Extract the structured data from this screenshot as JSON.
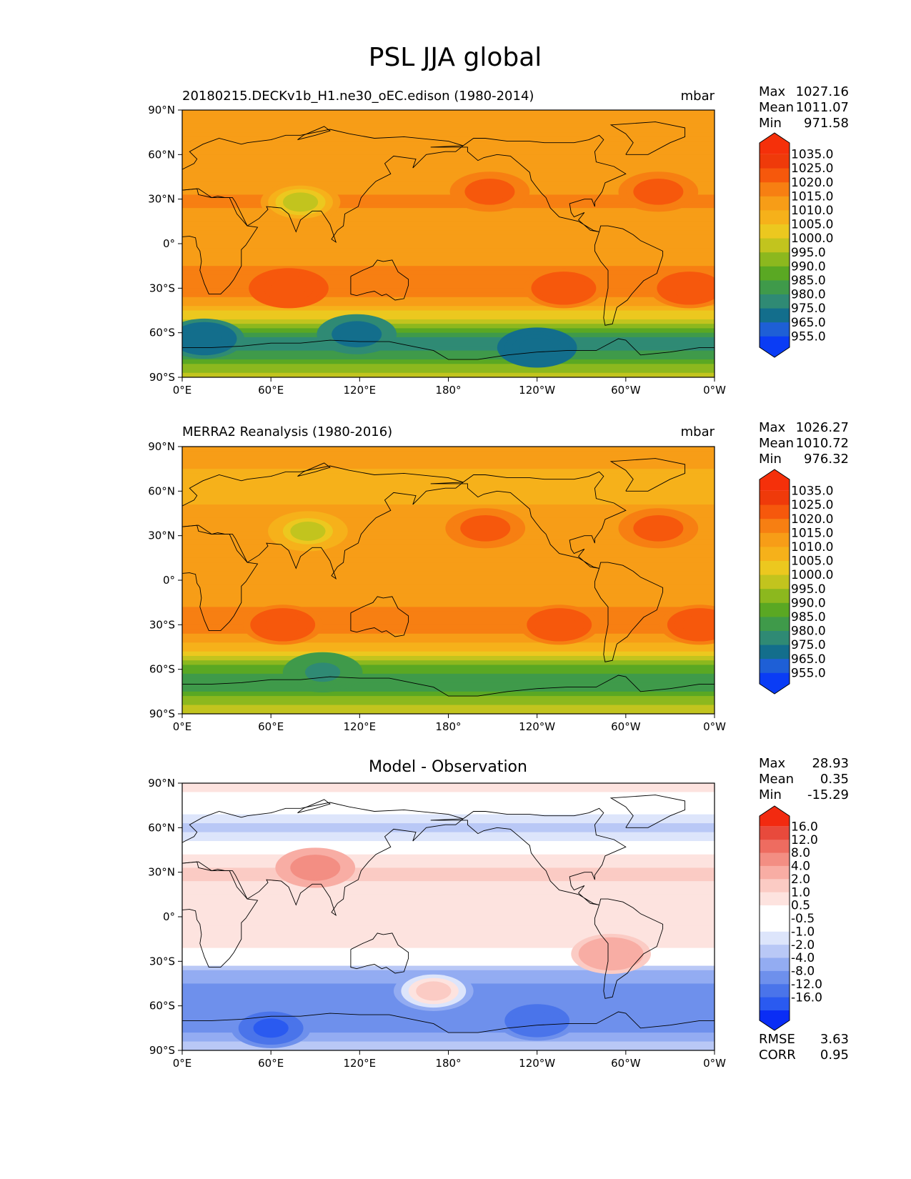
{
  "figure": {
    "title": "PSL JJA global"
  },
  "colors": {
    "absolute_levels": [
      "#0a3cf5",
      "#1e5fd6",
      "#136e8c",
      "#2f8a74",
      "#3f9a4a",
      "#5aa823",
      "#8cb81e",
      "#c2c41e",
      "#ecc81f",
      "#f6b11a",
      "#f79d17",
      "#f77f12",
      "#f6580c",
      "#ef3a0a",
      "#f5300a"
    ],
    "difference_levels": [
      "#0a2df5",
      "#2a5af0",
      "#4a74ea",
      "#6e90ec",
      "#93acf2",
      "#b9c8f6",
      "#dde5fb",
      "#ffffff",
      "#ffffff",
      "#fde3df",
      "#fbcbc4",
      "#f8ada4",
      "#f38e83",
      "#ee6c60",
      "#e84a3c",
      "#f22a10"
    ],
    "coastline": "#000000"
  },
  "panels": [
    {
      "id": "test",
      "left_title": "20180215.DECKv1b_H1.ne30_oEC.edison (1980-2014)",
      "center_title": "",
      "units": "mbar",
      "stats": [
        {
          "label": "Max",
          "value": "1027.16"
        },
        {
          "label": "Mean",
          "value": "1011.07"
        },
        {
          "label": "Min",
          "value": "971.58"
        }
      ],
      "colorbar_ticks": [
        "1035.0",
        "1025.0",
        "1020.0",
        "1015.0",
        "1010.0",
        "1005.0",
        "1000.0",
        "995.0",
        "990.0",
        "985.0",
        "980.0",
        "975.0",
        "965.0",
        "955.0"
      ],
      "extra_stats": []
    },
    {
      "id": "reference",
      "left_title": "MERRA2 Reanalysis (1980-2016)",
      "center_title": "",
      "units": "mbar",
      "stats": [
        {
          "label": "Max",
          "value": "1026.27"
        },
        {
          "label": "Mean",
          "value": "1010.72"
        },
        {
          "label": "Min",
          "value": "976.32"
        }
      ],
      "colorbar_ticks": [
        "1035.0",
        "1025.0",
        "1020.0",
        "1015.0",
        "1010.0",
        "1005.0",
        "1000.0",
        "995.0",
        "990.0",
        "985.0",
        "980.0",
        "975.0",
        "965.0",
        "955.0"
      ],
      "extra_stats": []
    },
    {
      "id": "difference",
      "left_title": "",
      "center_title": "Model - Observation",
      "units": "",
      "stats": [
        {
          "label": "Max",
          "value": "28.93"
        },
        {
          "label": "Mean",
          "value": "0.35"
        },
        {
          "label": "Min",
          "value": "-15.29"
        }
      ],
      "colorbar_ticks": [
        "16.0",
        "12.0",
        "8.0",
        "4.0",
        "2.0",
        "1.0",
        "0.5",
        "-0.5",
        "-1.0",
        "-2.0",
        "-4.0",
        "-8.0",
        "-12.0",
        "-16.0"
      ],
      "extra_stats": [
        {
          "label": "RMSE",
          "value": "3.63"
        },
        {
          "label": "CORR",
          "value": "0.95"
        }
      ]
    }
  ],
  "axes": {
    "lat_ticks": [
      "90°N",
      "60°N",
      "30°N",
      "0°",
      "30°S",
      "60°S",
      "90°S"
    ],
    "lon_ticks": [
      "0°E",
      "60°E",
      "120°E",
      "180°",
      "120°W",
      "60°W",
      "0°W"
    ]
  },
  "chart_data": [
    {
      "type": "heatmap",
      "title": "20180215.DECKv1b_H1.ne30_oEC.edison (1980-2014)",
      "units": "mbar",
      "xlim": [
        0,
        360
      ],
      "ylim": [
        -90,
        90
      ],
      "summary": {
        "max": 1027.16,
        "mean": 1011.07,
        "min": 971.58
      },
      "levels": [
        955,
        965,
        975,
        980,
        985,
        990,
        995,
        1000,
        1005,
        1010,
        1015,
        1020,
        1025,
        1035
      ],
      "zonal_profile": {
        "lat": [
          90,
          75,
          60,
          45,
          30,
          15,
          0,
          -15,
          -30,
          -40,
          -50,
          -60,
          -70,
          -80,
          -90
        ],
        "value": [
          1013,
          1011,
          1010,
          1012,
          1016,
          1013,
          1012,
          1015,
          1019,
          1013,
          1000,
          983,
          975,
          990,
          998
        ]
      },
      "highs": [
        {
          "lon": 208,
          "lat": 35,
          "value": 1025
        },
        {
          "lon": 322,
          "lat": 35,
          "value": 1025
        },
        {
          "lon": 72,
          "lat": -30,
          "value": 1024
        },
        {
          "lon": 258,
          "lat": -30,
          "value": 1023
        },
        {
          "lon": 343,
          "lat": -30,
          "value": 1023
        }
      ],
      "lows": [
        {
          "lon": 15,
          "lat": -64,
          "value": 970
        },
        {
          "lon": 118,
          "lat": -61,
          "value": 968
        },
        {
          "lon": 240,
          "lat": -70,
          "value": 967
        },
        {
          "lon": 80,
          "lat": 28,
          "value": 997
        }
      ]
    },
    {
      "type": "heatmap",
      "title": "MERRA2 Reanalysis (1980-2016)",
      "units": "mbar",
      "xlim": [
        0,
        360
      ],
      "ylim": [
        -90,
        90
      ],
      "summary": {
        "max": 1026.27,
        "mean": 1010.72,
        "min": 976.32
      },
      "levels": [
        955,
        965,
        975,
        980,
        985,
        990,
        995,
        1000,
        1005,
        1010,
        1015,
        1020,
        1025,
        1035
      ],
      "zonal_profile": {
        "lat": [
          90,
          75,
          60,
          45,
          30,
          15,
          0,
          -15,
          -30,
          -40,
          -50,
          -60,
          -70,
          -80,
          -90
        ],
        "value": [
          1012,
          1010,
          1009,
          1011,
          1015,
          1012,
          1011,
          1014,
          1019,
          1013,
          1001,
          986,
          980,
          992,
          999
        ]
      },
      "highs": [
        {
          "lon": 205,
          "lat": 35,
          "value": 1024
        },
        {
          "lon": 322,
          "lat": 35,
          "value": 1023
        },
        {
          "lon": 68,
          "lat": -30,
          "value": 1023
        },
        {
          "lon": 255,
          "lat": -30,
          "value": 1022
        },
        {
          "lon": 350,
          "lat": -30,
          "value": 1022
        }
      ],
      "lows": [
        {
          "lon": 85,
          "lat": 33,
          "value": 996
        },
        {
          "lon": 95,
          "lat": -62,
          "value": 980
        }
      ]
    },
    {
      "type": "heatmap",
      "title": "Model - Observation",
      "units": "",
      "xlim": [
        0,
        360
      ],
      "ylim": [
        -90,
        90
      ],
      "summary": {
        "max": 28.93,
        "mean": 0.35,
        "min": -15.29,
        "rmse": 3.63,
        "corr": 0.95
      },
      "levels": [
        -16,
        -12,
        -8,
        -4,
        -2,
        -1,
        -0.5,
        0.5,
        1,
        2,
        4,
        8,
        12,
        16
      ],
      "zonal_profile": {
        "lat": [
          90,
          75,
          60,
          45,
          30,
          15,
          0,
          -15,
          -30,
          -40,
          -50,
          -60,
          -70,
          -80,
          -90
        ],
        "value": [
          1.5,
          0.5,
          -1.5,
          0.5,
          2.5,
          1.5,
          1.0,
          1.5,
          0.0,
          -3.0,
          -5.0,
          -6.0,
          -6.0,
          -3.0,
          -1.0
        ]
      },
      "highs": [
        {
          "lon": 90,
          "lat": 33,
          "value": 12
        },
        {
          "lon": 290,
          "lat": -25,
          "value": 8
        },
        {
          "lon": 170,
          "lat": -50,
          "value": 4
        }
      ],
      "lows": [
        {
          "lon": 60,
          "lat": -75,
          "value": -14
        },
        {
          "lon": 240,
          "lat": -70,
          "value": -10
        }
      ]
    }
  ]
}
